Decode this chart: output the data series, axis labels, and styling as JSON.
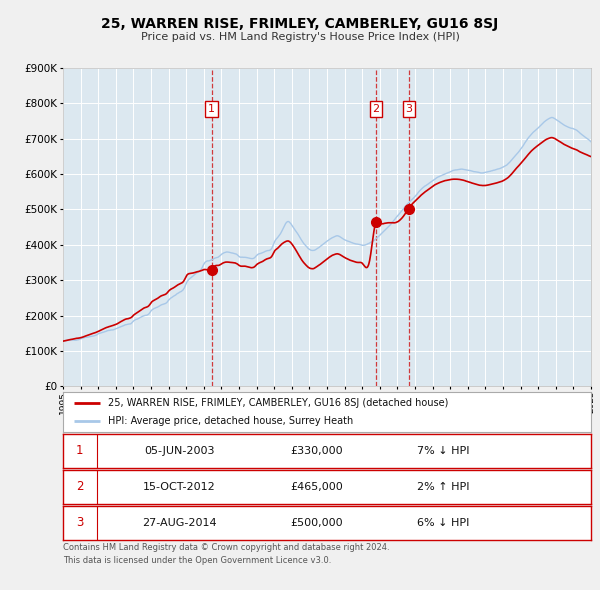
{
  "title": "25, WARREN RISE, FRIMLEY, CAMBERLEY, GU16 8SJ",
  "subtitle": "Price paid vs. HM Land Registry's House Price Index (HPI)",
  "legend_line1": "25, WARREN RISE, FRIMLEY, CAMBERLEY, GU16 8SJ (detached house)",
  "legend_line2": "HPI: Average price, detached house, Surrey Heath",
  "footer_line1": "Contains HM Land Registry data © Crown copyright and database right 2024.",
  "footer_line2": "This data is licensed under the Open Government Licence v3.0.",
  "transactions": [
    {
      "num": 1,
      "date": "05-JUN-2003",
      "price": "£330,000",
      "pct": "7% ↓ HPI",
      "year": 2003.44
    },
    {
      "num": 2,
      "date": "15-OCT-2012",
      "price": "£465,000",
      "pct": "2% ↑ HPI",
      "year": 2012.79
    },
    {
      "num": 3,
      "date": "27-AUG-2014",
      "price": "£500,000",
      "pct": "6% ↓ HPI",
      "year": 2014.65
    }
  ],
  "sale_values": [
    330000,
    465000,
    500000
  ],
  "hpi_line_color": "#a8c8e8",
  "price_line_color": "#cc0000",
  "marker_color": "#cc0000",
  "plot_bg_color": "#dce8f0",
  "grid_color": "#ffffff",
  "fig_bg_color": "#f0f0f0",
  "ylim": [
    0,
    900000
  ],
  "yticks": [
    0,
    100000,
    200000,
    300000,
    400000,
    500000,
    600000,
    700000,
    800000,
    900000
  ],
  "xmin": 1995,
  "xmax": 2025,
  "hpi_points": [
    [
      1995.0,
      128000
    ],
    [
      1995.2,
      130000
    ],
    [
      1995.5,
      132000
    ],
    [
      1995.8,
      133000
    ],
    [
      1996.0,
      136000
    ],
    [
      1996.3,
      140000
    ],
    [
      1996.6,
      143000
    ],
    [
      1996.9,
      147000
    ],
    [
      1997.0,
      150000
    ],
    [
      1997.3,
      155000
    ],
    [
      1997.6,
      160000
    ],
    [
      1997.9,
      163000
    ],
    [
      1998.0,
      165000
    ],
    [
      1998.3,
      170000
    ],
    [
      1998.6,
      175000
    ],
    [
      1998.9,
      178000
    ],
    [
      1999.0,
      183000
    ],
    [
      1999.3,
      190000
    ],
    [
      1999.6,
      198000
    ],
    [
      1999.9,
      205000
    ],
    [
      2000.0,
      212000
    ],
    [
      2000.3,
      222000
    ],
    [
      2000.6,
      230000
    ],
    [
      2000.9,
      238000
    ],
    [
      2001.0,
      244000
    ],
    [
      2001.3,
      255000
    ],
    [
      2001.6,
      265000
    ],
    [
      2001.9,
      278000
    ],
    [
      2002.0,
      290000
    ],
    [
      2002.3,
      308000
    ],
    [
      2002.6,
      320000
    ],
    [
      2002.9,
      335000
    ],
    [
      2003.0,
      345000
    ],
    [
      2003.3,
      355000
    ],
    [
      2003.6,
      362000
    ],
    [
      2003.9,
      368000
    ],
    [
      2004.0,
      372000
    ],
    [
      2004.3,
      378000
    ],
    [
      2004.6,
      375000
    ],
    [
      2004.9,
      370000
    ],
    [
      2005.0,
      365000
    ],
    [
      2005.3,
      362000
    ],
    [
      2005.6,
      360000
    ],
    [
      2005.9,
      362000
    ],
    [
      2006.0,
      368000
    ],
    [
      2006.3,
      375000
    ],
    [
      2006.6,
      382000
    ],
    [
      2006.9,
      392000
    ],
    [
      2007.0,
      405000
    ],
    [
      2007.2,
      420000
    ],
    [
      2007.4,
      435000
    ],
    [
      2007.6,
      455000
    ],
    [
      2007.8,
      465000
    ],
    [
      2008.0,
      455000
    ],
    [
      2008.2,
      440000
    ],
    [
      2008.4,
      425000
    ],
    [
      2008.6,
      408000
    ],
    [
      2008.8,
      395000
    ],
    [
      2009.0,
      385000
    ],
    [
      2009.2,
      382000
    ],
    [
      2009.4,
      385000
    ],
    [
      2009.6,
      392000
    ],
    [
      2009.8,
      400000
    ],
    [
      2010.0,
      408000
    ],
    [
      2010.2,
      415000
    ],
    [
      2010.4,
      420000
    ],
    [
      2010.6,
      422000
    ],
    [
      2010.8,
      418000
    ],
    [
      2011.0,
      412000
    ],
    [
      2011.2,
      408000
    ],
    [
      2011.4,
      405000
    ],
    [
      2011.6,
      402000
    ],
    [
      2011.8,
      400000
    ],
    [
      2012.0,
      398000
    ],
    [
      2012.2,
      400000
    ],
    [
      2012.4,
      405000
    ],
    [
      2012.6,
      410000
    ],
    [
      2012.8,
      418000
    ],
    [
      2013.0,
      428000
    ],
    [
      2013.2,
      438000
    ],
    [
      2013.4,
      448000
    ],
    [
      2013.6,
      458000
    ],
    [
      2013.8,
      470000
    ],
    [
      2014.0,
      482000
    ],
    [
      2014.2,
      495000
    ],
    [
      2014.4,
      508000
    ],
    [
      2014.6,
      520000
    ],
    [
      2014.8,
      530000
    ],
    [
      2015.0,
      540000
    ],
    [
      2015.2,
      552000
    ],
    [
      2015.4,
      562000
    ],
    [
      2015.6,
      570000
    ],
    [
      2015.8,
      578000
    ],
    [
      2016.0,
      585000
    ],
    [
      2016.2,
      592000
    ],
    [
      2016.4,
      598000
    ],
    [
      2016.6,
      602000
    ],
    [
      2016.8,
      606000
    ],
    [
      2017.0,
      610000
    ],
    [
      2017.2,
      613000
    ],
    [
      2017.4,
      615000
    ],
    [
      2017.6,
      617000
    ],
    [
      2017.8,
      616000
    ],
    [
      2018.0,
      614000
    ],
    [
      2018.2,
      612000
    ],
    [
      2018.4,
      610000
    ],
    [
      2018.6,
      608000
    ],
    [
      2018.8,
      606000
    ],
    [
      2019.0,
      608000
    ],
    [
      2019.2,
      610000
    ],
    [
      2019.4,
      612000
    ],
    [
      2019.6,
      615000
    ],
    [
      2019.8,
      618000
    ],
    [
      2020.0,
      622000
    ],
    [
      2020.2,
      628000
    ],
    [
      2020.4,
      638000
    ],
    [
      2020.6,
      650000
    ],
    [
      2020.8,
      662000
    ],
    [
      2021.0,
      675000
    ],
    [
      2021.2,
      690000
    ],
    [
      2021.4,
      705000
    ],
    [
      2021.6,
      718000
    ],
    [
      2021.8,
      728000
    ],
    [
      2022.0,
      738000
    ],
    [
      2022.2,
      748000
    ],
    [
      2022.4,
      758000
    ],
    [
      2022.6,
      765000
    ],
    [
      2022.8,
      768000
    ],
    [
      2023.0,
      762000
    ],
    [
      2023.2,
      755000
    ],
    [
      2023.4,
      748000
    ],
    [
      2023.6,
      742000
    ],
    [
      2023.8,
      738000
    ],
    [
      2024.0,
      735000
    ],
    [
      2024.2,
      730000
    ],
    [
      2024.4,
      722000
    ],
    [
      2024.6,
      715000
    ],
    [
      2024.8,
      708000
    ],
    [
      2025.0,
      700000
    ]
  ],
  "price_points": [
    [
      1995.0,
      128000
    ],
    [
      1995.2,
      130000
    ],
    [
      1995.5,
      133000
    ],
    [
      1995.8,
      136000
    ],
    [
      1996.0,
      138000
    ],
    [
      1996.3,
      143000
    ],
    [
      1996.6,
      148000
    ],
    [
      1996.9,
      153000
    ],
    [
      1997.0,
      155000
    ],
    [
      1997.3,
      162000
    ],
    [
      1997.6,
      168000
    ],
    [
      1997.9,
      173000
    ],
    [
      1998.0,
      175000
    ],
    [
      1998.3,
      183000
    ],
    [
      1998.6,
      190000
    ],
    [
      1998.9,
      195000
    ],
    [
      1999.0,
      200000
    ],
    [
      1999.3,
      210000
    ],
    [
      1999.6,
      220000
    ],
    [
      1999.9,
      228000
    ],
    [
      2000.0,
      235000
    ],
    [
      2000.3,
      245000
    ],
    [
      2000.6,
      255000
    ],
    [
      2000.9,
      262000
    ],
    [
      2001.0,
      268000
    ],
    [
      2001.3,
      278000
    ],
    [
      2001.6,
      288000
    ],
    [
      2001.9,
      300000
    ],
    [
      2002.0,
      310000
    ],
    [
      2002.3,
      318000
    ],
    [
      2002.6,
      322000
    ],
    [
      2002.9,
      326000
    ],
    [
      2003.0,
      328000
    ],
    [
      2003.44,
      330000
    ],
    [
      2003.6,
      338000
    ],
    [
      2003.9,
      342000
    ],
    [
      2004.0,
      345000
    ],
    [
      2004.3,
      350000
    ],
    [
      2004.6,
      348000
    ],
    [
      2004.9,
      344000
    ],
    [
      2005.0,
      340000
    ],
    [
      2005.3,
      338000
    ],
    [
      2005.6,
      335000
    ],
    [
      2005.9,
      337000
    ],
    [
      2006.0,
      342000
    ],
    [
      2006.3,
      350000
    ],
    [
      2006.6,
      358000
    ],
    [
      2006.9,
      368000
    ],
    [
      2007.0,
      378000
    ],
    [
      2007.2,
      388000
    ],
    [
      2007.4,
      398000
    ],
    [
      2007.6,
      405000
    ],
    [
      2007.8,
      408000
    ],
    [
      2008.0,
      400000
    ],
    [
      2008.2,
      385000
    ],
    [
      2008.4,
      368000
    ],
    [
      2008.6,
      352000
    ],
    [
      2008.8,
      340000
    ],
    [
      2009.0,
      332000
    ],
    [
      2009.2,
      330000
    ],
    [
      2009.4,
      335000
    ],
    [
      2009.6,
      342000
    ],
    [
      2009.8,
      350000
    ],
    [
      2010.0,
      358000
    ],
    [
      2010.2,
      365000
    ],
    [
      2010.4,
      370000
    ],
    [
      2010.6,
      372000
    ],
    [
      2010.8,
      368000
    ],
    [
      2011.0,
      362000
    ],
    [
      2011.2,
      357000
    ],
    [
      2011.4,
      353000
    ],
    [
      2011.6,
      350000
    ],
    [
      2011.8,
      348000
    ],
    [
      2012.0,
      346000
    ],
    [
      2012.4,
      348000
    ],
    [
      2012.79,
      465000
    ],
    [
      2013.0,
      460000
    ],
    [
      2013.2,
      458000
    ],
    [
      2013.5,
      460000
    ],
    [
      2014.0,
      462000
    ],
    [
      2014.65,
      500000
    ],
    [
      2014.8,
      510000
    ],
    [
      2015.0,
      520000
    ],
    [
      2015.2,
      530000
    ],
    [
      2015.4,
      540000
    ],
    [
      2015.6,
      548000
    ],
    [
      2015.8,
      555000
    ],
    [
      2016.0,
      562000
    ],
    [
      2016.2,
      568000
    ],
    [
      2016.4,
      573000
    ],
    [
      2016.6,
      577000
    ],
    [
      2016.8,
      580000
    ],
    [
      2017.0,
      582000
    ],
    [
      2017.2,
      583000
    ],
    [
      2017.4,
      583000
    ],
    [
      2017.6,
      582000
    ],
    [
      2017.8,
      580000
    ],
    [
      2018.0,
      577000
    ],
    [
      2018.2,
      574000
    ],
    [
      2018.4,
      571000
    ],
    [
      2018.6,
      568000
    ],
    [
      2018.8,
      566000
    ],
    [
      2019.0,
      566000
    ],
    [
      2019.2,
      568000
    ],
    [
      2019.4,
      570000
    ],
    [
      2019.6,
      573000
    ],
    [
      2019.8,
      576000
    ],
    [
      2020.0,
      580000
    ],
    [
      2020.2,
      586000
    ],
    [
      2020.4,
      594000
    ],
    [
      2020.6,
      605000
    ],
    [
      2020.8,
      617000
    ],
    [
      2021.0,
      628000
    ],
    [
      2021.2,
      640000
    ],
    [
      2021.4,
      652000
    ],
    [
      2021.6,
      663000
    ],
    [
      2021.8,
      672000
    ],
    [
      2022.0,
      680000
    ],
    [
      2022.2,
      688000
    ],
    [
      2022.4,
      695000
    ],
    [
      2022.6,
      700000
    ],
    [
      2022.8,
      702000
    ],
    [
      2023.0,
      698000
    ],
    [
      2023.2,
      692000
    ],
    [
      2023.4,
      686000
    ],
    [
      2023.6,
      680000
    ],
    [
      2023.8,
      675000
    ],
    [
      2024.0,
      671000
    ],
    [
      2024.2,
      667000
    ],
    [
      2024.4,
      662000
    ],
    [
      2024.6,
      658000
    ],
    [
      2024.8,
      654000
    ],
    [
      2025.0,
      650000
    ]
  ]
}
